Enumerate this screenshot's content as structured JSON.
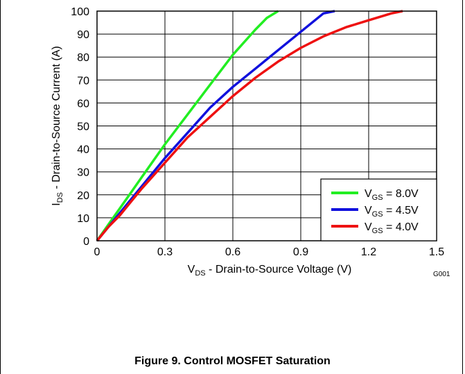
{
  "chart_data": {
    "type": "line",
    "title": "",
    "xlabel": {
      "main": "V",
      "sub": "DS",
      "rest": " - Drain-to-Source Voltage (V)"
    },
    "ylabel": {
      "main": "I",
      "sub": "DS",
      "rest": " - Drain-to-Source Current (A)"
    },
    "xlim": [
      0,
      1.5
    ],
    "ylim": [
      0,
      100
    ],
    "x_ticks": [
      0,
      0.3,
      0.6,
      0.9,
      1.2,
      1.5
    ],
    "x_tick_labels": [
      "0",
      "0.3",
      "0.6",
      "0.9",
      "1.2",
      "1.5"
    ],
    "y_ticks": [
      0,
      10,
      20,
      30,
      40,
      50,
      60,
      70,
      80,
      90,
      100
    ],
    "y_tick_labels": [
      "0",
      "10",
      "20",
      "30",
      "40",
      "50",
      "60",
      "70",
      "80",
      "90",
      "100"
    ],
    "grid": true,
    "legend_position": "bottom-right",
    "series": [
      {
        "name_main": "V",
        "name_sub": "GS",
        "name_rest": " = 8.0V",
        "color": "#22ee22",
        "x": [
          0,
          0.05,
          0.1,
          0.15,
          0.2,
          0.3,
          0.4,
          0.5,
          0.6,
          0.7,
          0.75,
          0.8
        ],
        "y": [
          0,
          7,
          14,
          21,
          28,
          42,
          55,
          68,
          81,
          92,
          97,
          100
        ]
      },
      {
        "name_main": "V",
        "name_sub": "GS",
        "name_rest": " = 4.5V",
        "color": "#1111dd",
        "x": [
          0,
          0.05,
          0.1,
          0.15,
          0.2,
          0.3,
          0.4,
          0.5,
          0.6,
          0.7,
          0.8,
          0.9,
          1.0,
          1.05
        ],
        "y": [
          0,
          6,
          12,
          18,
          24,
          36,
          47,
          58,
          67,
          75,
          83,
          91,
          99,
          100
        ]
      },
      {
        "name_main": "V",
        "name_sub": "GS",
        "name_rest": " = 4.0V",
        "color": "#ee1111",
        "x": [
          0,
          0.05,
          0.1,
          0.15,
          0.2,
          0.3,
          0.4,
          0.5,
          0.6,
          0.7,
          0.8,
          0.9,
          1.0,
          1.1,
          1.2,
          1.3,
          1.35
        ],
        "y": [
          0,
          6,
          11,
          17,
          23,
          34,
          45,
          54,
          63,
          71,
          78,
          84,
          89,
          93,
          96,
          99,
          100
        ]
      }
    ],
    "corner_code": "G001"
  },
  "caption": "Figure 9.  Control MOSFET Saturation"
}
